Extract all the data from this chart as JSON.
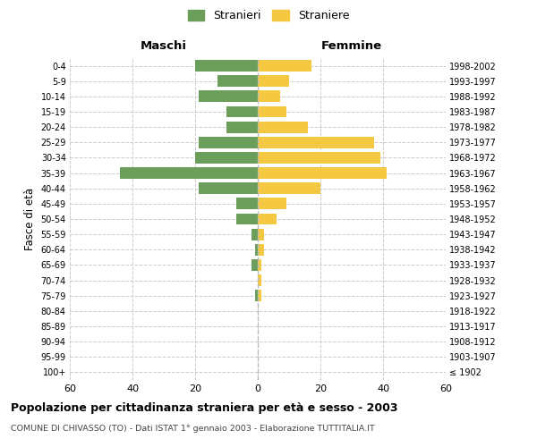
{
  "age_groups": [
    "100+",
    "95-99",
    "90-94",
    "85-89",
    "80-84",
    "75-79",
    "70-74",
    "65-69",
    "60-64",
    "55-59",
    "50-54",
    "45-49",
    "40-44",
    "35-39",
    "30-34",
    "25-29",
    "20-24",
    "15-19",
    "10-14",
    "5-9",
    "0-4"
  ],
  "birth_years": [
    "≤ 1902",
    "1903-1907",
    "1908-1912",
    "1913-1917",
    "1918-1922",
    "1923-1927",
    "1928-1932",
    "1933-1937",
    "1938-1942",
    "1943-1947",
    "1948-1952",
    "1953-1957",
    "1958-1962",
    "1963-1967",
    "1968-1972",
    "1973-1977",
    "1978-1982",
    "1983-1987",
    "1988-1992",
    "1993-1997",
    "1998-2002"
  ],
  "maschi": [
    0,
    0,
    0,
    0,
    0,
    1,
    0,
    2,
    1,
    2,
    7,
    7,
    19,
    44,
    20,
    19,
    10,
    10,
    19,
    13,
    20
  ],
  "femmine": [
    0,
    0,
    0,
    0,
    0,
    1,
    1,
    1,
    2,
    2,
    6,
    9,
    20,
    41,
    39,
    37,
    16,
    9,
    7,
    10,
    17
  ],
  "color_maschi": "#6a9e5a",
  "color_femmine": "#f5c842",
  "title": "Popolazione per cittadinanza straniera per età e sesso - 2003",
  "subtitle": "COMUNE DI CHIVASSO (TO) - Dati ISTAT 1° gennaio 2003 - Elaborazione TUTTITALIA.IT",
  "xlabel_left": "Maschi",
  "xlabel_right": "Femmine",
  "ylabel_left": "Fasce di età",
  "legend_maschi": "Stranieri",
  "legend_femmine": "Straniere",
  "xlim": 60,
  "background_color": "#ffffff",
  "grid_color": "#cccccc"
}
